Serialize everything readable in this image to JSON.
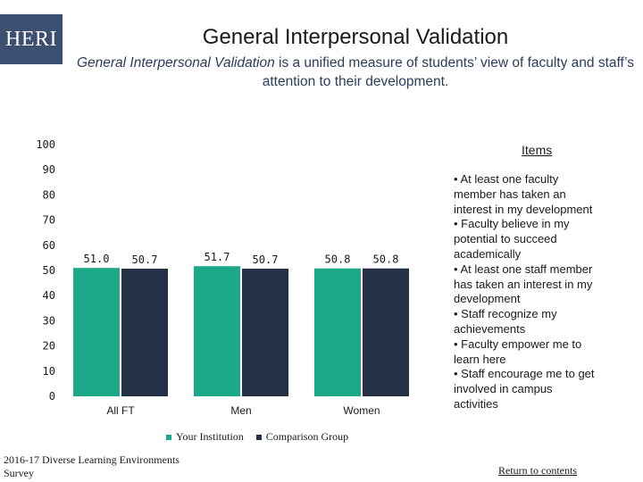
{
  "logo": {
    "text": "HERI"
  },
  "header": {
    "title": "General Interpersonal Validation",
    "subtitle_em": "General Interpersonal Validation",
    "subtitle_rest": " is a unified measure of students’ view of faculty and staff’s attention to their development."
  },
  "colors": {
    "your_institution": "#1ba98a",
    "comparison": "#243046"
  },
  "chart_data": {
    "type": "bar",
    "categories": [
      "All FT",
      "Men",
      "Women"
    ],
    "series": [
      {
        "name": "Your Institution",
        "values": [
          51.0,
          51.7,
          50.8
        ],
        "labels": [
          "51.0",
          "51.7",
          "50.8"
        ]
      },
      {
        "name": "Comparison Group",
        "values": [
          50.7,
          50.7,
          50.8
        ],
        "labels": [
          "50.7",
          "50.7",
          "50.8"
        ]
      }
    ],
    "ylim": [
      0,
      100
    ],
    "yticks": [
      0,
      10,
      20,
      30,
      40,
      50,
      60,
      70,
      80,
      90,
      100
    ],
    "title": "",
    "xlabel": "",
    "ylabel": ""
  },
  "items": {
    "title": "Items",
    "lines": [
      "• At least one faculty",
      "member has taken an",
      "interest in my development",
      "• Faculty believe in my",
      "potential to succeed",
      "academically",
      "• At least one staff member",
      "has taken an interest in my",
      "development",
      "• Staff recognize my",
      "achievements",
      "• Faculty empower me to",
      "learn here",
      "• Staff encourage me to get",
      "involved in campus",
      "activities"
    ]
  },
  "legend": {
    "your_institution": "Your Institution",
    "comparison": "Comparison Group"
  },
  "footer": {
    "source_line1": "2016-17 Diverse Learning Environments",
    "source_line2": "Survey",
    "link": "Return to contents"
  }
}
